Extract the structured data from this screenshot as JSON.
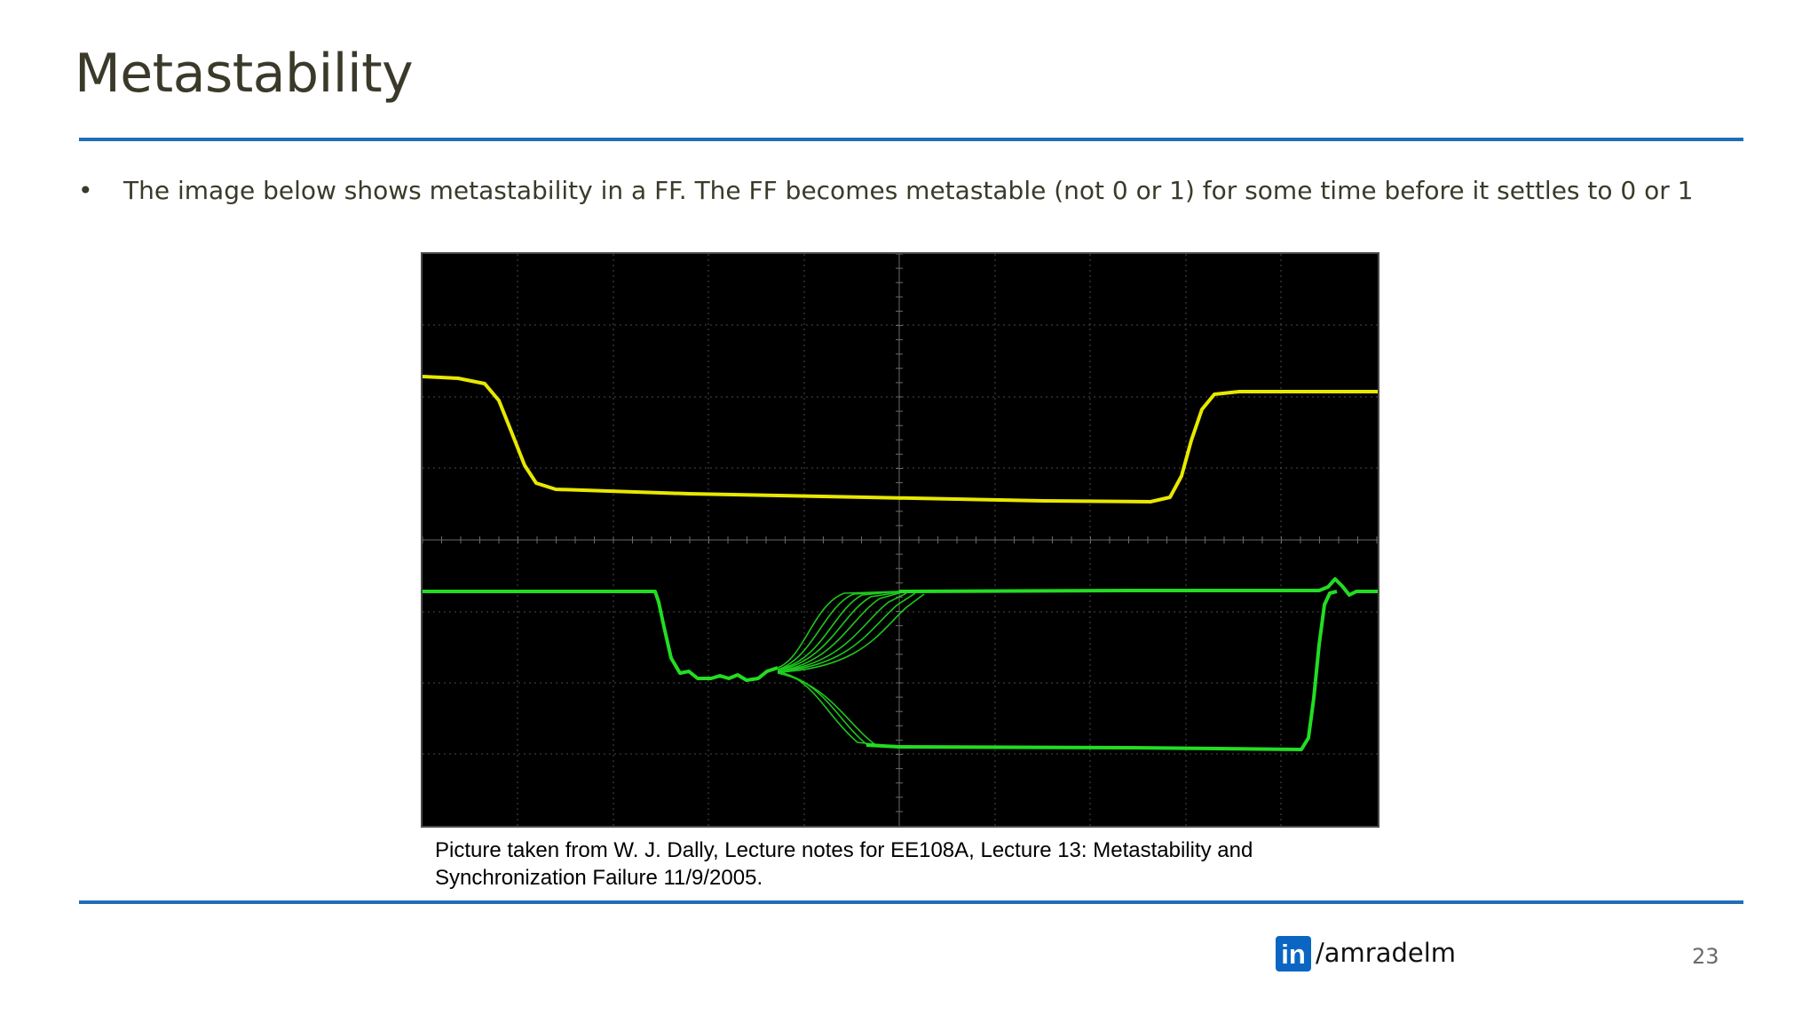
{
  "slide": {
    "title": "Metastability",
    "bullet_marker": "•",
    "bullet_text": "The image below shows metastability in a FF. The FF becomes metastable (not 0 or 1) for some time before it settles to 0 or 1",
    "caption_line1": "Picture taken from W. J. Dally, Lecture notes for EE108A, Lecture 13: Metastability and",
    "caption_line2": "Synchronization Failure  11/9/2005.",
    "footer_badge": "in",
    "footer_handle": "/amradelm",
    "page_number": "23"
  },
  "colors": {
    "accent_rule": "#1f6fb8",
    "trace_yellow": "#e8e800",
    "trace_green": "#22dd22",
    "linkedin_blue": "#0a66c2"
  }
}
